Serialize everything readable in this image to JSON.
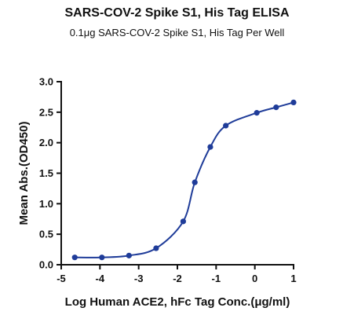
{
  "chart_data": {
    "type": "scatter",
    "title": "SARS-COV-2 Spike S1, His Tag ELISA",
    "subtitle": "0.1μg SARS-COV-2 Spike S1, His Tag Per Well",
    "xlabel": "Log Human ACE2, hFc Tag Conc.(μg/ml)",
    "ylabel": "Mean Abs.(OD450)",
    "xlim": [
      -5,
      1
    ],
    "ylim": [
      0,
      3.0
    ],
    "xticks": [
      "-5",
      "-4",
      "-3",
      "-2",
      "-1",
      "0",
      "1"
    ],
    "yticks": [
      "0.0",
      "0.5",
      "1.0",
      "1.5",
      "2.0",
      "2.5",
      "3.0"
    ],
    "grid": false,
    "fit_curve": "sigmoidal",
    "series": [
      {
        "x": [
          -4.65,
          -3.95,
          -3.25,
          -2.55,
          -1.85,
          -1.55,
          -1.15,
          -0.75,
          0.05,
          0.55,
          1.0
        ],
        "y": [
          0.12,
          0.12,
          0.15,
          0.27,
          0.71,
          1.35,
          1.93,
          2.28,
          2.49,
          2.58,
          2.66
        ]
      }
    ],
    "color": "#1f3c99"
  }
}
